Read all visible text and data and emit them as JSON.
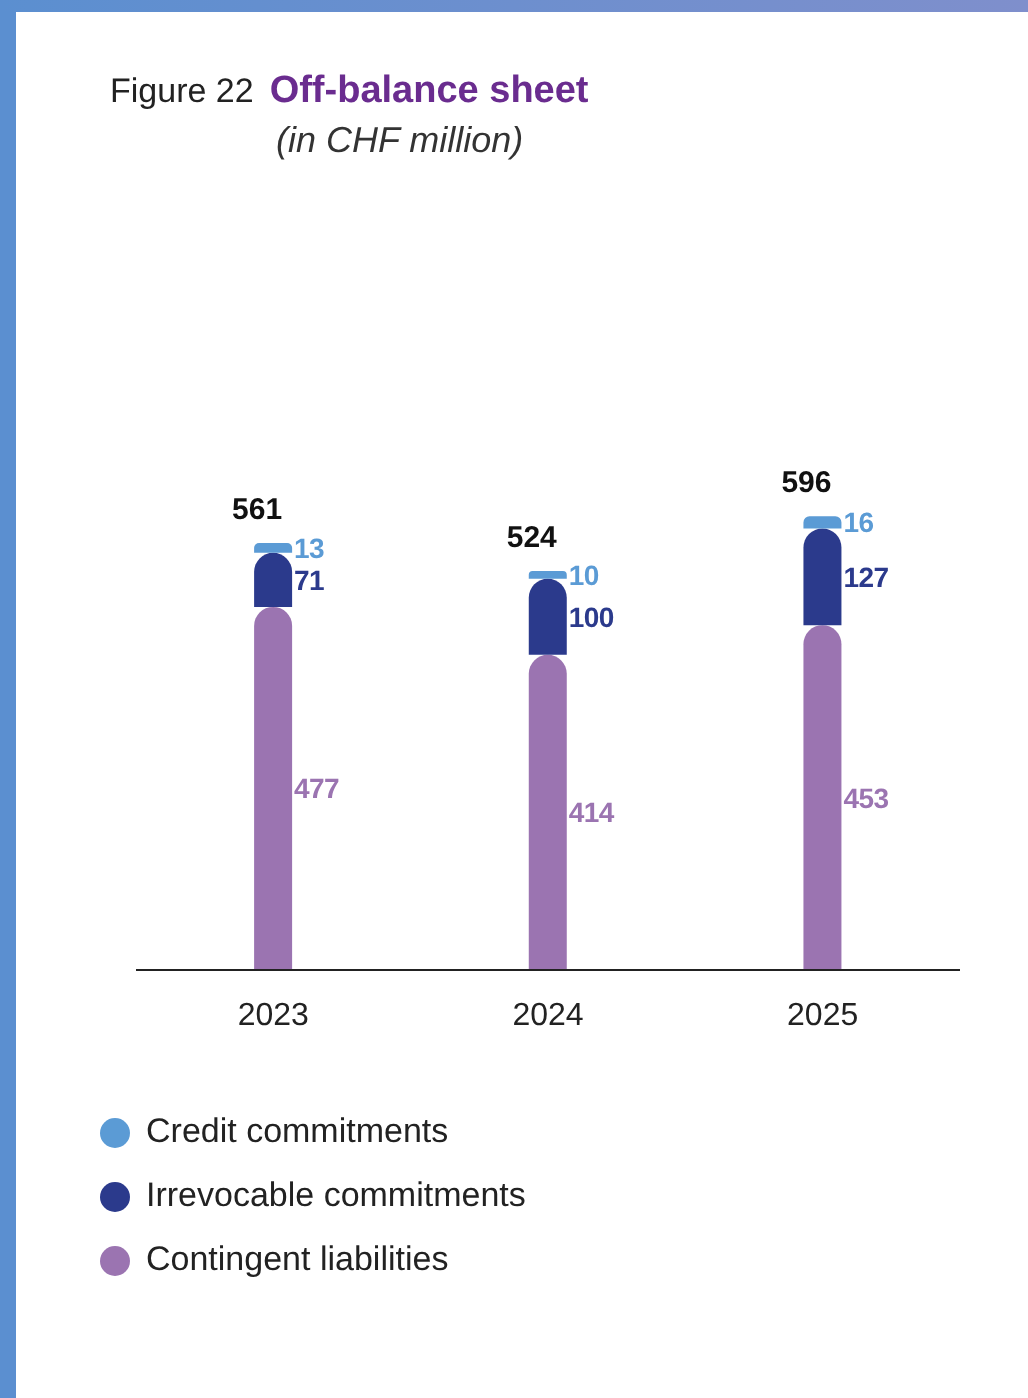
{
  "chart_data": {
    "type": "bar",
    "title": "Off-balance sheet",
    "subtitle": "(in CHF million)",
    "annotations": [
      "Figure 22"
    ],
    "categories": [
      "2023",
      "2024",
      "2025"
    ],
    "stacked": true,
    "series": [
      {
        "name": "Contingent liabilities",
        "color": "#9b74b1",
        "values": [
          477,
          414,
          453
        ]
      },
      {
        "name": "Irrevocable commitments",
        "color": "#2b3a8c",
        "values": [
          71,
          100,
          127
        ]
      },
      {
        "name": "Credit commitments",
        "color": "#5b9bd5",
        "values": [
          13,
          10,
          16
        ]
      }
    ],
    "data_labels": true,
    "totals": [
      "561",
      "524",
      "596"
    ],
    "legend": "bottom left",
    "grid": false
  }
}
